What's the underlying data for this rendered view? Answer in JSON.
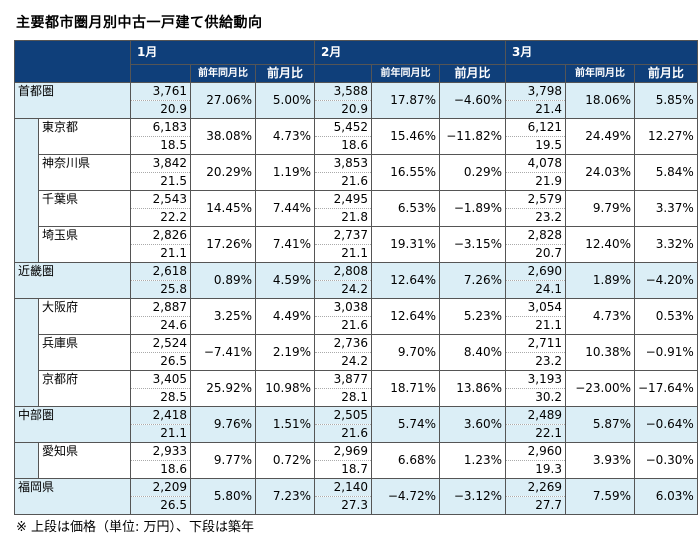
{
  "title": "主要都市圏月別中古一戸建て供給動向",
  "note": "※ 上段は価格（単位: 万円）、下段は築年",
  "headers": {
    "months": [
      "1月",
      "2月",
      "3月"
    ],
    "yoy": "前年同月比",
    "mom": "前月比"
  },
  "rows": [
    {
      "name": "首都圏",
      "level": "region",
      "cells": [
        {
          "price": "3,761",
          "age": "20.9",
          "yoy": "27.06%",
          "mom": "5.00%"
        },
        {
          "price": "3,588",
          "age": "20.9",
          "yoy": "17.87%",
          "mom": "−4.60%"
        },
        {
          "price": "3,798",
          "age": "21.4",
          "yoy": "18.06%",
          "mom": "5.85%"
        }
      ]
    },
    {
      "name": "東京都",
      "level": "sub",
      "cells": [
        {
          "price": "6,183",
          "age": "18.5",
          "yoy": "38.08%",
          "mom": "4.73%"
        },
        {
          "price": "5,452",
          "age": "18.6",
          "yoy": "15.46%",
          "mom": "−11.82%"
        },
        {
          "price": "6,121",
          "age": "19.5",
          "yoy": "24.49%",
          "mom": "12.27%"
        }
      ]
    },
    {
      "name": "神奈川県",
      "level": "sub",
      "cells": [
        {
          "price": "3,842",
          "age": "21.5",
          "yoy": "20.29%",
          "mom": "1.19%"
        },
        {
          "price": "3,853",
          "age": "21.6",
          "yoy": "16.55%",
          "mom": "0.29%"
        },
        {
          "price": "4,078",
          "age": "21.9",
          "yoy": "24.03%",
          "mom": "5.84%"
        }
      ]
    },
    {
      "name": "千葉県",
      "level": "sub",
      "cells": [
        {
          "price": "2,543",
          "age": "22.2",
          "yoy": "14.45%",
          "mom": "7.44%"
        },
        {
          "price": "2,495",
          "age": "21.8",
          "yoy": "6.53%",
          "mom": "−1.89%"
        },
        {
          "price": "2,579",
          "age": "23.2",
          "yoy": "9.79%",
          "mom": "3.37%"
        }
      ]
    },
    {
      "name": "埼玉県",
      "level": "sub",
      "cells": [
        {
          "price": "2,826",
          "age": "21.1",
          "yoy": "17.26%",
          "mom": "7.41%"
        },
        {
          "price": "2,737",
          "age": "21.1",
          "yoy": "19.31%",
          "mom": "−3.15%"
        },
        {
          "price": "2,828",
          "age": "20.7",
          "yoy": "12.40%",
          "mom": "3.32%"
        }
      ]
    },
    {
      "name": "近畿圏",
      "level": "region",
      "cells": [
        {
          "price": "2,618",
          "age": "25.8",
          "yoy": "0.89%",
          "mom": "4.59%"
        },
        {
          "price": "2,808",
          "age": "24.2",
          "yoy": "12.64%",
          "mom": "7.26%"
        },
        {
          "price": "2,690",
          "age": "24.1",
          "yoy": "1.89%",
          "mom": "−4.20%"
        }
      ]
    },
    {
      "name": "大阪府",
      "level": "sub",
      "cells": [
        {
          "price": "2,887",
          "age": "24.6",
          "yoy": "3.25%",
          "mom": "4.49%"
        },
        {
          "price": "3,038",
          "age": "21.6",
          "yoy": "12.64%",
          "mom": "5.23%"
        },
        {
          "price": "3,054",
          "age": "21.1",
          "yoy": "4.73%",
          "mom": "0.53%"
        }
      ]
    },
    {
      "name": "兵庫県",
      "level": "sub",
      "cells": [
        {
          "price": "2,524",
          "age": "26.5",
          "yoy": "−7.41%",
          "mom": "2.19%"
        },
        {
          "price": "2,736",
          "age": "24.2",
          "yoy": "9.70%",
          "mom": "8.40%"
        },
        {
          "price": "2,711",
          "age": "23.2",
          "yoy": "10.38%",
          "mom": "−0.91%"
        }
      ]
    },
    {
      "name": "京都府",
      "level": "sub",
      "cells": [
        {
          "price": "3,405",
          "age": "28.5",
          "yoy": "25.92%",
          "mom": "10.98%"
        },
        {
          "price": "3,877",
          "age": "28.1",
          "yoy": "18.71%",
          "mom": "13.86%"
        },
        {
          "price": "3,193",
          "age": "30.2",
          "yoy": "−23.00%",
          "mom": "−17.64%"
        }
      ]
    },
    {
      "name": "中部圏",
      "level": "region",
      "cells": [
        {
          "price": "2,418",
          "age": "21.1",
          "yoy": "9.76%",
          "mom": "1.51%"
        },
        {
          "price": "2,505",
          "age": "21.6",
          "yoy": "5.74%",
          "mom": "3.60%"
        },
        {
          "price": "2,489",
          "age": "22.1",
          "yoy": "5.87%",
          "mom": "−0.64%"
        }
      ]
    },
    {
      "name": "愛知県",
      "level": "sub",
      "cells": [
        {
          "price": "2,933",
          "age": "18.6",
          "yoy": "9.77%",
          "mom": "0.72%"
        },
        {
          "price": "2,969",
          "age": "18.7",
          "yoy": "6.68%",
          "mom": "1.23%"
        },
        {
          "price": "2,960",
          "age": "19.3",
          "yoy": "3.93%",
          "mom": "−0.30%"
        }
      ]
    },
    {
      "name": "福岡県",
      "level": "region",
      "cells": [
        {
          "price": "2,209",
          "age": "26.5",
          "yoy": "5.80%",
          "mom": "7.23%"
        },
        {
          "price": "2,140",
          "age": "27.3",
          "yoy": "−4.72%",
          "mom": "−3.12%"
        },
        {
          "price": "2,269",
          "age": "27.7",
          "yoy": "7.59%",
          "mom": "6.03%"
        }
      ]
    }
  ]
}
